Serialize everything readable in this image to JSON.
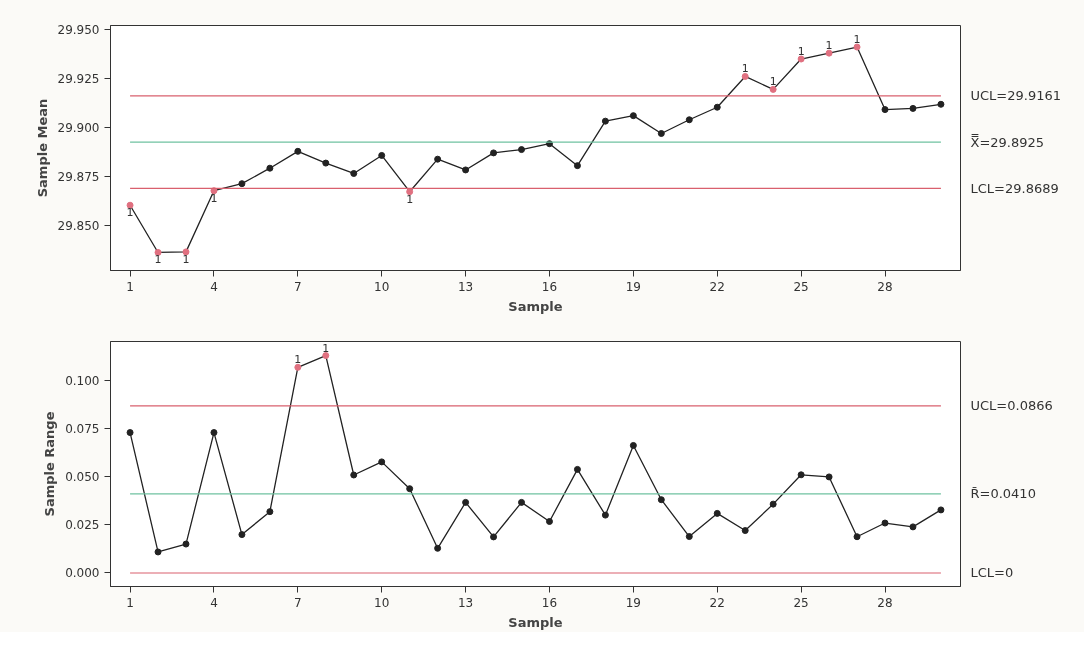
{
  "chart_data": [
    {
      "type": "line",
      "xlabel": "Sample",
      "ylabel": "Sample Mean",
      "x": [
        1,
        2,
        3,
        4,
        5,
        6,
        7,
        8,
        9,
        10,
        11,
        12,
        13,
        14,
        15,
        16,
        17,
        18,
        19,
        20,
        21,
        22,
        23,
        24,
        25,
        26,
        27,
        28,
        29,
        30
      ],
      "series": [
        {
          "color": "#222222",
          "colors": [
            "#e07080",
            "#e07080",
            "#e07080",
            "#e07080",
            "#222222",
            "#222222",
            "#222222",
            "#222222",
            "#222222",
            "#222222",
            "#e07080",
            "#222222",
            "#222222",
            "#222222",
            "#222222",
            "#222222",
            "#222222",
            "#222222",
            "#222222",
            "#222222",
            "#222222",
            "#222222",
            "#e07080",
            "#e07080",
            "#e07080",
            "#e07080",
            "#e07080",
            "#222222",
            "#222222",
            "#222222"
          ],
          "values": [
            29.8603,
            29.8362,
            29.8365,
            29.8677,
            29.8713,
            29.8792,
            29.8878,
            29.8818,
            29.8765,
            29.8857,
            29.8672,
            29.8838,
            29.8783,
            29.887,
            29.8887,
            29.8917,
            29.8805,
            29.9032,
            29.906,
            29.8969,
            29.9039,
            29.9103,
            29.926,
            29.9194,
            29.9349,
            29.9379,
            29.941,
            29.9091,
            29.9097,
            29.9118
          ]
        }
      ],
      "marker": "circle",
      "xlim": [
        0.3,
        30.7
      ],
      "xticks": [
        1,
        4,
        7,
        10,
        13,
        16,
        19,
        22,
        25,
        28
      ],
      "ylim": [
        29.827,
        29.952
      ],
      "yticks": [
        {
          "value": 29.85,
          "label": "29.850"
        },
        {
          "value": 29.875,
          "label": "29.875"
        },
        {
          "value": 29.9,
          "label": "29.900"
        },
        {
          "value": 29.925,
          "label": "29.925"
        },
        {
          "value": 29.95,
          "label": "29.950"
        }
      ],
      "ref_lines": [
        {
          "axis": "y",
          "value": 29.9161,
          "label": "UCL=29.9161",
          "color": "#d9606e"
        },
        {
          "axis": "y",
          "value": 29.8925,
          "label": "X̿=29.8925",
          "color": "#6fc2a0"
        },
        {
          "axis": "y",
          "value": 29.8689,
          "label": "LCL=29.8689",
          "color": "#d9606e"
        }
      ],
      "annotations": [
        {
          "text": "1",
          "x": 1,
          "y": 29.8603
        },
        {
          "text": "1",
          "x": 2,
          "y": 29.8362
        },
        {
          "text": "1",
          "x": 3,
          "y": 29.8365
        },
        {
          "text": "1",
          "x": 4,
          "y": 29.8677
        },
        {
          "text": "1",
          "x": 11,
          "y": 29.8672
        },
        {
          "text": "1",
          "x": 23,
          "y": 29.926
        },
        {
          "text": "1",
          "x": 24,
          "y": 29.9194
        },
        {
          "text": "1",
          "x": 25,
          "y": 29.9349
        },
        {
          "text": "1",
          "x": 26,
          "y": 29.9379
        },
        {
          "text": "1",
          "x": 27,
          "y": 29.941
        }
      ]
    },
    {
      "type": "line",
      "xlabel": "Sample",
      "ylabel": "Sample Range",
      "x": [
        1,
        2,
        3,
        4,
        5,
        6,
        7,
        8,
        9,
        10,
        11,
        12,
        13,
        14,
        15,
        16,
        17,
        18,
        19,
        20,
        21,
        22,
        23,
        24,
        25,
        26,
        27,
        28,
        29,
        30
      ],
      "series": [
        {
          "color": "#222222",
          "colors": [
            "#222222",
            "#222222",
            "#222222",
            "#222222",
            "#222222",
            "#222222",
            "#e07080",
            "#e07080",
            "#222222",
            "#222222",
            "#222222",
            "#222222",
            "#222222",
            "#222222",
            "#222222",
            "#222222",
            "#222222",
            "#222222",
            "#222222",
            "#222222",
            "#222222",
            "#222222",
            "#222222",
            "#222222",
            "#222222",
            "#222222",
            "#222222",
            "#222222",
            "#222222",
            "#222222"
          ],
          "values": [
            0.0728,
            0.0109,
            0.015,
            0.0728,
            0.0199,
            0.0318,
            0.1066,
            0.1127,
            0.0508,
            0.0576,
            0.0437,
            0.0128,
            0.0366,
            0.0187,
            0.0366,
            0.0267,
            0.0537,
            0.03,
            0.0661,
            0.038,
            0.0189,
            0.0309,
            0.022,
            0.0357,
            0.0509,
            0.0498,
            0.0188,
            0.0259,
            0.0239,
            0.0327
          ]
        }
      ],
      "marker": "circle",
      "xlim": [
        0.3,
        30.7
      ],
      "xticks": [
        1,
        4,
        7,
        10,
        13,
        16,
        19,
        22,
        25,
        28
      ],
      "ylim": [
        -0.007,
        0.12
      ],
      "yticks": [
        {
          "value": 0,
          "label": "0.000"
        },
        {
          "value": 0.025,
          "label": "0.025"
        },
        {
          "value": 0.05,
          "label": "0.050"
        },
        {
          "value": 0.075,
          "label": "0.075"
        },
        {
          "value": 0.1,
          "label": "0.100"
        }
      ],
      "ref_lines": [
        {
          "axis": "y",
          "value": 0.0866,
          "label": "UCL=0.0866",
          "color": "#d9606e"
        },
        {
          "axis": "y",
          "value": 0.041,
          "label": "R̄=0.0410",
          "color": "#6fc2a0"
        },
        {
          "axis": "y",
          "value": 0,
          "label": "LCL=0",
          "color": "#d9606e"
        }
      ],
      "annotations": [
        {
          "text": "1",
          "x": 7,
          "y": 0.1066
        },
        {
          "text": "1",
          "x": 8,
          "y": 0.1127
        }
      ]
    }
  ]
}
